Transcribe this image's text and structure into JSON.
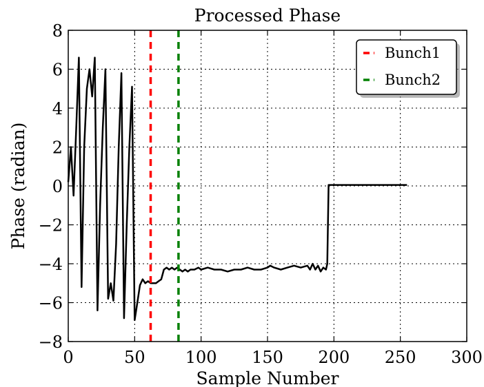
{
  "chart_data": {
    "type": "line",
    "title": "Processed Phase",
    "xlabel": "Sample Number",
    "ylabel": "Phase (radian)",
    "xlim": [
      0,
      300
    ],
    "ylim": [
      -8,
      8
    ],
    "x_ticks": [
      0,
      50,
      100,
      150,
      200,
      250,
      300
    ],
    "y_ticks": [
      -8,
      -6,
      -4,
      -2,
      0,
      2,
      4,
      6,
      8
    ],
    "x_tick_labels": [
      "0",
      "50",
      "100",
      "150",
      "200",
      "250",
      "300"
    ],
    "y_tick_labels": [
      "−8",
      "−6",
      "−4",
      "−2",
      "0",
      "2",
      "4",
      "6",
      "8"
    ],
    "grid": true,
    "legend_position": "top-right",
    "series": [
      {
        "color": "#000000",
        "x": [
          0,
          2,
          4,
          6,
          8,
          10,
          12,
          14,
          16,
          18,
          20,
          22,
          24,
          26,
          28,
          30,
          32,
          34,
          36,
          38,
          40,
          42,
          44,
          46,
          48,
          50,
          52,
          54,
          56,
          58,
          60,
          62,
          64,
          66,
          68,
          70,
          72,
          74,
          76,
          78,
          80,
          82,
          84,
          86,
          88,
          90,
          92,
          95,
          98,
          100,
          105,
          110,
          115,
          120,
          125,
          130,
          135,
          140,
          145,
          150,
          152,
          155,
          160,
          165,
          170,
          175,
          180,
          182,
          184,
          186,
          188,
          190,
          192,
          194,
          195,
          196,
          200,
          210,
          220,
          230,
          240,
          250,
          255
        ],
        "y": [
          0.2,
          2.0,
          -0.5,
          3.0,
          6.6,
          -5.2,
          2.0,
          5.0,
          6.0,
          4.6,
          6.6,
          -6.4,
          -1.0,
          3.0,
          6.0,
          -5.8,
          -5.0,
          -5.9,
          -3.0,
          2.0,
          5.8,
          -6.8,
          -2.0,
          2.0,
          5.1,
          -6.9,
          -6.0,
          -5.1,
          -4.8,
          -5.0,
          -4.9,
          -5.0,
          -5.0,
          -5.0,
          -4.9,
          -4.8,
          -4.3,
          -4.2,
          -4.3,
          -4.2,
          -4.3,
          -4.2,
          -4.3,
          -4.4,
          -4.3,
          -4.4,
          -4.3,
          -4.3,
          -4.2,
          -4.3,
          -4.2,
          -4.3,
          -4.3,
          -4.4,
          -4.3,
          -4.3,
          -4.2,
          -4.3,
          -4.3,
          -4.2,
          -4.1,
          -4.2,
          -4.3,
          -4.2,
          -4.1,
          -4.2,
          -4.1,
          -4.3,
          -4.0,
          -4.3,
          -4.1,
          -4.4,
          -4.2,
          -4.3,
          -4.0,
          0.05,
          0.05,
          0.05,
          0.05,
          0.05,
          0.05,
          0.05,
          0.05
        ]
      },
      {
        "name": "Bunch1",
        "color": "#ff0000",
        "style": "dashed",
        "x": [
          62,
          62
        ],
        "y": [
          -8,
          8
        ]
      },
      {
        "name": "Bunch2",
        "color": "#008000",
        "style": "dashed",
        "x": [
          83,
          83
        ],
        "y": [
          -8,
          8
        ]
      }
    ]
  }
}
